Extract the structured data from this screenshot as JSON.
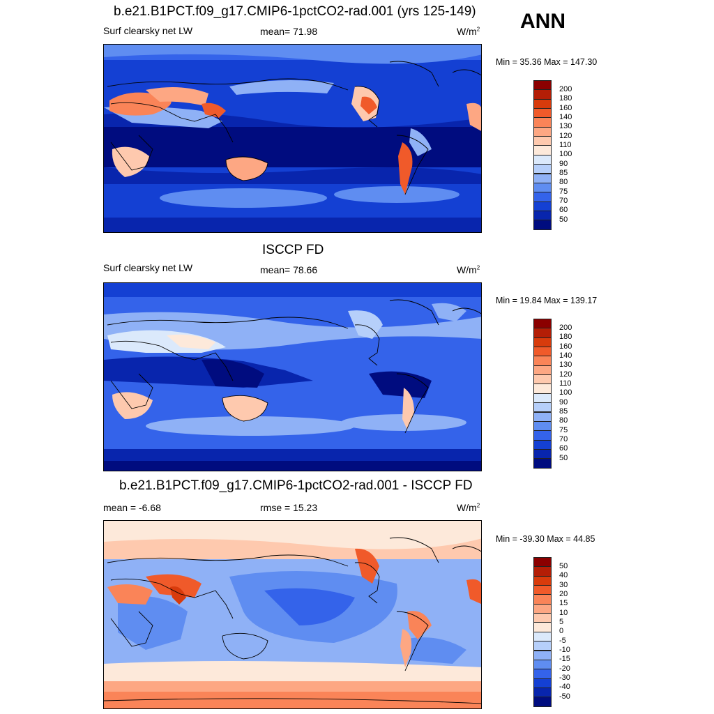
{
  "season": "ANN",
  "panels": [
    {
      "title": "b.e21.B1PCT.f09_g17.CMIP6-1pctCO2-rad.001 (yrs 125-149)",
      "left_label": "Surf clearsky net LW",
      "center_label": "mean=  71.98",
      "units": "W/m",
      "units_sup": "2",
      "minmax": "Min =  35.36 Max = 147.30"
    },
    {
      "title": "ISCCP FD",
      "left_label": "Surf clearsky net LW",
      "center_label": "mean=  78.66",
      "units": "W/m",
      "units_sup": "2",
      "minmax": "Min =  19.84 Max = 139.17"
    },
    {
      "title": "b.e21.B1PCT.f09_g17.CMIP6-1pctCO2-rad.001 - ISCCP FD",
      "left_label": "mean =  -6.68",
      "center_label": "rmse =  15.23",
      "units": "W/m",
      "units_sup": "2",
      "minmax": "Min = -39.30 Max =  44.85"
    }
  ],
  "colorbars": {
    "absolute": {
      "labels": [
        "200",
        "180",
        "160",
        "140",
        "130",
        "120",
        "110",
        "100",
        "90",
        "85",
        "80",
        "75",
        "70",
        "60",
        "50"
      ],
      "colors": [
        "#8b0000",
        "#b41e06",
        "#d83b0c",
        "#f05a2a",
        "#fa8458",
        "#fda783",
        "#fec9ae",
        "#fde9da",
        "#dbe9fb",
        "#b6cffa",
        "#8fb1f6",
        "#5f8df1",
        "#3463ea",
        "#1440d3",
        "#0825ad",
        "#000c7f"
      ]
    },
    "difference": {
      "labels": [
        "50",
        "40",
        "30",
        "20",
        "15",
        "10",
        "5",
        "0",
        "-5",
        "-10",
        "-15",
        "-20",
        "-30",
        "-40",
        "-50"
      ],
      "colors": [
        "#8b0000",
        "#b41e06",
        "#d83b0c",
        "#f05a2a",
        "#fa8458",
        "#fda783",
        "#fec9ae",
        "#fde9da",
        "#dbe9fb",
        "#b6cffa",
        "#8fb1f6",
        "#5f8df1",
        "#3463ea",
        "#1440d3",
        "#0825ad",
        "#000c7f"
      ]
    }
  }
}
